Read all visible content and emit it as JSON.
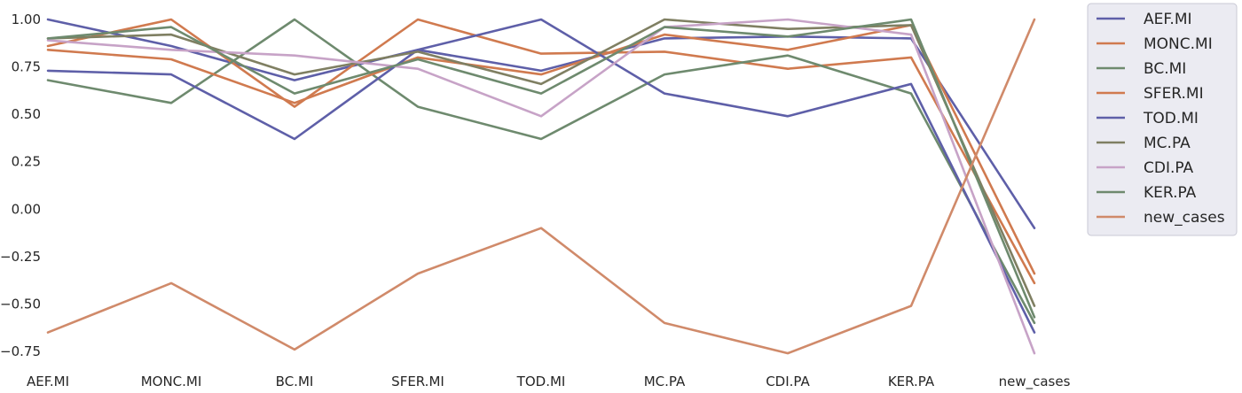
{
  "chart_data": {
    "type": "line",
    "categories": [
      "AEF.MI",
      "MONC.MI",
      "BC.MI",
      "SFER.MI",
      "TOD.MI",
      "MC.PA",
      "CDI.PA",
      "KER.PA",
      "new_cases"
    ],
    "ylim": [
      -0.78,
      1.05
    ],
    "yticks": [
      1.0,
      0.75,
      0.5,
      0.25,
      0.0,
      -0.25,
      -0.5,
      -0.75
    ],
    "ytick_labels": [
      "1.00",
      "0.75",
      "0.50",
      "0.25",
      "0.00",
      "−0.25",
      "−0.50",
      "−0.75"
    ],
    "grid": false,
    "legend_position": "outside-right",
    "series": [
      {
        "name": "AEF.MI",
        "color": "#5e5fa8",
        "values": [
          1.0,
          0.86,
          0.68,
          0.84,
          0.73,
          0.9,
          0.91,
          0.9,
          -0.1
        ]
      },
      {
        "name": "MONC.MI",
        "color": "#d07a4f",
        "values": [
          0.86,
          1.0,
          0.54,
          1.0,
          0.82,
          0.83,
          0.74,
          0.8,
          -0.39
        ]
      },
      {
        "name": "BC.MI",
        "color": "#6e8a6e",
        "values": [
          0.68,
          0.56,
          1.0,
          0.54,
          0.37,
          0.71,
          0.81,
          0.61,
          -0.6
        ]
      },
      {
        "name": "SFER.MI",
        "color": "#d07a4f",
        "values": [
          0.84,
          0.79,
          0.56,
          0.8,
          0.71,
          0.92,
          0.84,
          0.97,
          -0.34
        ]
      },
      {
        "name": "TOD.MI",
        "color": "#5e5fa8",
        "values": [
          0.73,
          0.71,
          0.37,
          0.84,
          1.0,
          0.61,
          0.49,
          0.66,
          -0.65
        ]
      },
      {
        "name": "MC.PA",
        "color": "#7f7f62",
        "values": [
          0.9,
          0.92,
          0.71,
          0.83,
          0.66,
          1.0,
          0.95,
          0.97,
          -0.51
        ]
      },
      {
        "name": "CDI.PA",
        "color": "#c7a3c7",
        "values": [
          0.89,
          0.84,
          0.81,
          0.74,
          0.49,
          0.96,
          1.0,
          0.92,
          -0.76
        ]
      },
      {
        "name": "KER.PA",
        "color": "#6e8a6e",
        "values": [
          0.9,
          0.96,
          0.61,
          0.79,
          0.61,
          0.96,
          0.91,
          1.0,
          -0.57
        ]
      },
      {
        "name": "new_cases",
        "color": "#d08a6a",
        "values": [
          -0.65,
          -0.39,
          -0.74,
          -0.34,
          -0.1,
          -0.6,
          -0.76,
          -0.51,
          1.0
        ]
      }
    ]
  }
}
